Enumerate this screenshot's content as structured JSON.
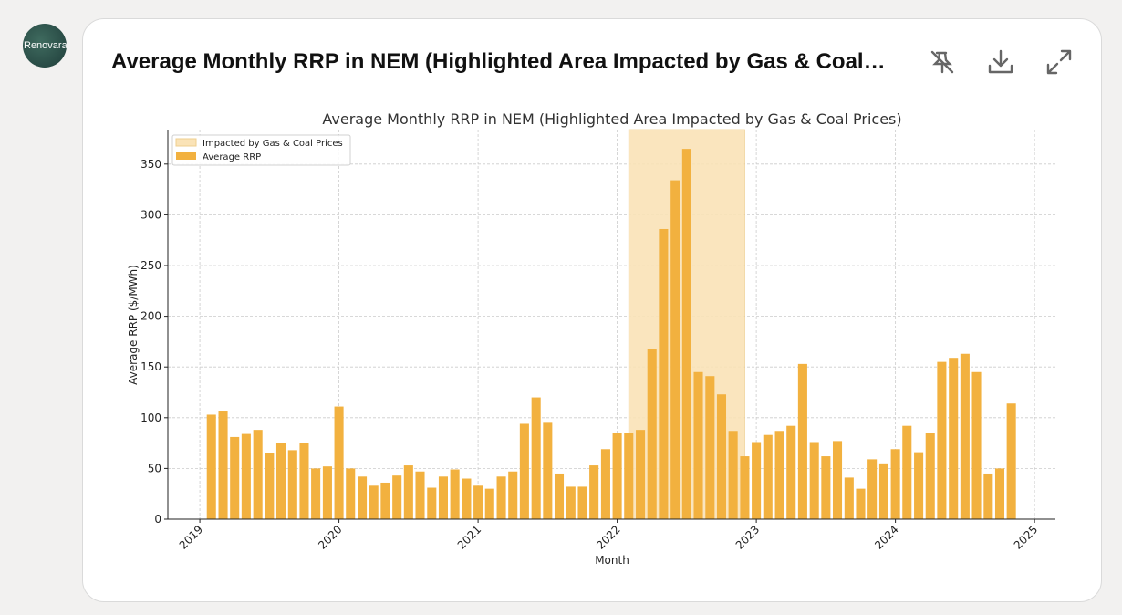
{
  "logo": "Renovara",
  "header": {
    "title": "Average Monthly RRP in NEM (Highlighted Area Impacted by Gas & Coal Prices)"
  },
  "chart_data": {
    "type": "bar",
    "title": "Average Monthly RRP in NEM (Highlighted Area Impacted by Gas & Coal Prices)",
    "x_label": "Month",
    "y_label": "Average RRP ($/MWh)",
    "x": [
      2019.083,
      2019.167,
      2019.25,
      2019.333,
      2019.417,
      2019.5,
      2019.583,
      2019.667,
      2019.75,
      2019.833,
      2019.917,
      2020.0,
      2020.083,
      2020.167,
      2020.25,
      2020.333,
      2020.417,
      2020.5,
      2020.583,
      2020.667,
      2020.75,
      2020.833,
      2020.917,
      2021.0,
      2021.083,
      2021.167,
      2021.25,
      2021.333,
      2021.417,
      2021.5,
      2021.583,
      2021.667,
      2021.75,
      2021.833,
      2021.917,
      2022.0,
      2022.083,
      2022.167,
      2022.25,
      2022.333,
      2022.417,
      2022.5,
      2022.583,
      2022.667,
      2022.75,
      2022.833,
      2022.917,
      2023.0,
      2023.083,
      2023.167,
      2023.25,
      2023.333,
      2023.417,
      2023.5,
      2023.583,
      2023.667,
      2023.75,
      2023.833,
      2023.917,
      2024.0,
      2024.083,
      2024.167,
      2024.25,
      2024.333,
      2024.417,
      2024.5,
      2024.583,
      2024.667,
      2024.75,
      2024.833
    ],
    "series": [
      {
        "name": "Average RRP",
        "color": "#f2b13f",
        "values": [
          103,
          107,
          81,
          84,
          88,
          65,
          75,
          68,
          75,
          50,
          52,
          111,
          50,
          42,
          33,
          36,
          43,
          53,
          47,
          31,
          42,
          49,
          40,
          33,
          30,
          42,
          47,
          94,
          120,
          95,
          45,
          32,
          32,
          53,
          69,
          85,
          85,
          88,
          168,
          286,
          334,
          365,
          145,
          141,
          123,
          87,
          62,
          76,
          83,
          87,
          92,
          153,
          76,
          62,
          77,
          41,
          30,
          59,
          55,
          69,
          92,
          66,
          85,
          155,
          159,
          163,
          145,
          45,
          50,
          114
        ]
      }
    ],
    "highlight": {
      "name": "Impacted by Gas & Coal Prices",
      "color": "#fae3b7",
      "range": [
        2022.083,
        2022.917
      ]
    },
    "xlim": [
      2018.77,
      2025.15
    ],
    "xticks": [
      2019,
      2020,
      2021,
      2022,
      2023,
      2024,
      2025
    ],
    "ylim": [
      0,
      384
    ],
    "yticks": [
      0,
      50,
      100,
      150,
      200,
      250,
      300,
      350
    ],
    "grid": true,
    "legend": "upper left"
  }
}
